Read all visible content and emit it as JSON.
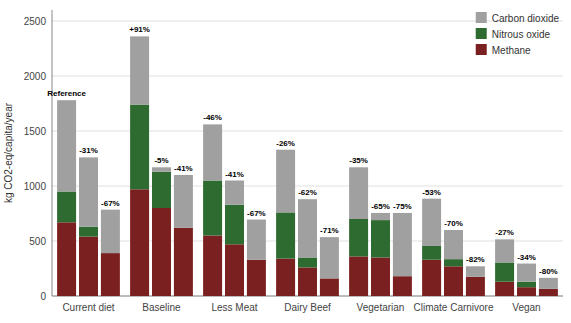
{
  "chart_data": {
    "type": "bar",
    "stacked": true,
    "grid": true,
    "legend": "upper right",
    "ylabel": "kg CO2-eq/capita/year",
    "ylim": [
      0,
      2600
    ],
    "yticks": [
      0,
      500,
      1000,
      1500,
      2000,
      2500
    ],
    "categories": [
      "Current diet",
      "Baseline",
      "Less Meat",
      "Dairy Beef",
      "Vegetarian",
      "Climate Carnivore",
      "Vegan"
    ],
    "series": [
      {
        "name": "Methane",
        "color": "#7B2020",
        "values": [
          [
            670,
            970,
            550,
            340,
            360,
            330,
            130
          ],
          [
            540,
            800,
            470,
            260,
            350,
            270,
            80
          ],
          [
            390,
            620,
            330,
            160,
            180,
            175,
            65
          ]
        ]
      },
      {
        "name": "Nitrous oxide",
        "color": "#2E6B30",
        "values": [
          [
            280,
            770,
            500,
            420,
            340,
            125,
            175
          ],
          [
            90,
            330,
            360,
            90,
            340,
            65,
            50
          ],
          [
            0,
            0,
            0,
            0,
            0,
            0,
            0
          ]
        ]
      },
      {
        "name": "Carbon dioxide",
        "color": "#A0A0A0",
        "values": [
          [
            830,
            620,
            510,
            570,
            470,
            430,
            210
          ],
          [
            630,
            40,
            220,
            530,
            65,
            265,
            165
          ],
          [
            395,
            480,
            365,
            375,
            575,
            95,
            100
          ]
        ]
      }
    ],
    "annotations": [
      [
        "Reference",
        "+91%",
        "-46%",
        "-26%",
        "-35%",
        "-53%",
        "-27%"
      ],
      [
        "-31%",
        "-5%",
        "-41%",
        "-62%",
        "-65%",
        "-70%",
        "-34%"
      ],
      [
        "-67%",
        "-41%",
        "-67%",
        "-71%",
        "-75%",
        "-82%",
        "-80%"
      ]
    ]
  }
}
